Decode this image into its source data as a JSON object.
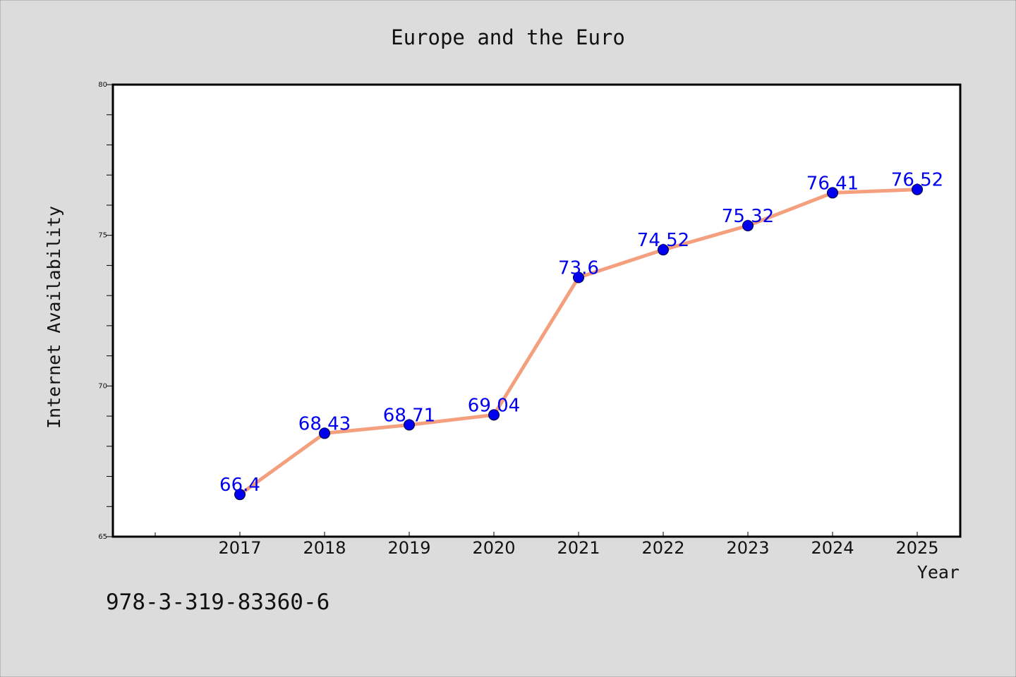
{
  "colors": {
    "background": "#dcdcdc",
    "plot_background": "#ffffff",
    "line": "#f4a07e",
    "marker": "#0000ee",
    "data_label": "#0000ee",
    "text": "#111111"
  },
  "isbn": "978-3-319-83360-6",
  "chart_data": {
    "type": "line",
    "title": "Europe and the Euro",
    "xlabel": "Year",
    "ylabel": "Internet Availability",
    "categories": [
      "2017",
      "2018",
      "2019",
      "2020",
      "2021",
      "2022",
      "2023",
      "2024",
      "2025"
    ],
    "series": [
      {
        "values": [
          66.4,
          68.43,
          68.71,
          69.04,
          73.6,
          74.52,
          75.32,
          76.41,
          76.52
        ],
        "labels": [
          "66.4",
          "68.43",
          "68.71",
          "69.04",
          "73.6",
          "74.52",
          "75.32",
          "76.41",
          "76.52"
        ]
      }
    ],
    "ylim": [
      65,
      80
    ],
    "yticks": [
      "65",
      "70",
      "75",
      "80"
    ],
    "y_minor_step": 1,
    "grid": false,
    "legend": "none"
  }
}
